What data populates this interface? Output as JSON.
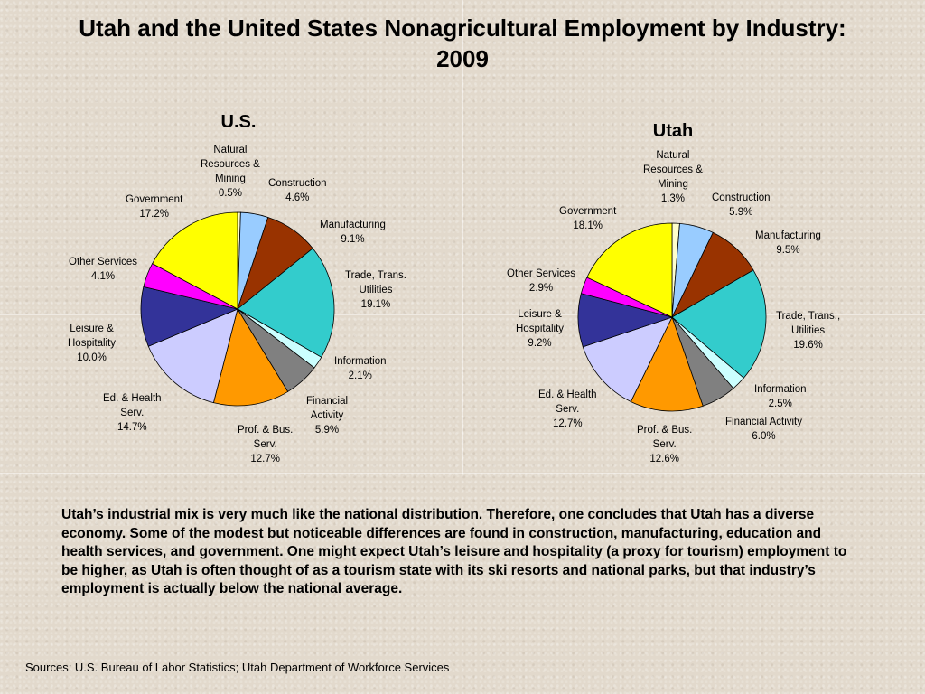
{
  "title": "Utah and the United States Nonagricultural Employment by Industry: 2009",
  "chart_data": [
    {
      "type": "pie",
      "title": "U.S.",
      "slices": [
        {
          "label": "Natural Resources & Mining",
          "value": 0.5,
          "display": "0.5%",
          "color": "#ffffcc"
        },
        {
          "label": "Construction",
          "value": 4.6,
          "display": "4.6%",
          "color": "#99ccff"
        },
        {
          "label": "Manufacturing",
          "value": 9.1,
          "display": "9.1%",
          "color": "#993300"
        },
        {
          "label": "Trade, Trans. Utilities",
          "value": 19.1,
          "display": "19.1%",
          "color": "#33cccc"
        },
        {
          "label": "Information",
          "value": 2.1,
          "display": "2.1%",
          "color": "#ccffff"
        },
        {
          "label": "Financial Activity",
          "value": 5.9,
          "display": "5.9%",
          "color": "#808080"
        },
        {
          "label": "Prof. & Bus. Serv.",
          "value": 12.7,
          "display": "12.7%",
          "color": "#ff9900"
        },
        {
          "label": "Ed. & Health Serv.",
          "value": 14.7,
          "display": "14.7%",
          "color": "#ccccff"
        },
        {
          "label": "Leisure & Hospitality",
          "value": 10.0,
          "display": "10.0%",
          "color": "#333399"
        },
        {
          "label": "Other Services",
          "value": 4.1,
          "display": "4.1%",
          "color": "#ff00ff"
        },
        {
          "label": "Government",
          "value": 17.2,
          "display": "17.2%",
          "color": "#ffff00"
        }
      ]
    },
    {
      "type": "pie",
      "title": "Utah",
      "slices": [
        {
          "label": "Natural Resources & Mining",
          "value": 1.3,
          "display": "1.3%",
          "color": "#ffffcc"
        },
        {
          "label": "Construction",
          "value": 5.9,
          "display": "5.9%",
          "color": "#99ccff"
        },
        {
          "label": "Manufacturing",
          "value": 9.5,
          "display": "9.5%",
          "color": "#993300"
        },
        {
          "label": "Trade, Trans., Utilities",
          "value": 19.6,
          "display": "19.6%",
          "color": "#33cccc"
        },
        {
          "label": "Information",
          "value": 2.5,
          "display": "2.5%",
          "color": "#ccffff"
        },
        {
          "label": "Financial Activity",
          "value": 6.0,
          "display": "6.0%",
          "color": "#808080"
        },
        {
          "label": "Prof. & Bus. Serv.",
          "value": 12.6,
          "display": "12.6%",
          "color": "#ff9900"
        },
        {
          "label": "Ed. & Health Serv.",
          "value": 12.7,
          "display": "12.7%",
          "color": "#ccccff"
        },
        {
          "label": "Leisure & Hospitality",
          "value": 9.2,
          "display": "9.2%",
          "color": "#333399"
        },
        {
          "label": "Other Services",
          "value": 2.9,
          "display": "2.9%",
          "color": "#ff00ff"
        },
        {
          "label": "Government",
          "value": 18.1,
          "display": "18.1%",
          "color": "#ffff00"
        }
      ]
    }
  ],
  "description": "Utah’s industrial mix is very much like the national distribution. Therefore, one concludes that Utah has a diverse economy. Some of the modest but noticeable differences are found in construction, manufacturing, education and health services, and government. One might expect Utah’s leisure and hospitality (a proxy for tourism) employment to be higher, as Utah is often thought of as a tourism state with its ski resorts and national parks, but that industry’s employment is actually below the national average.",
  "sources": "Sources: U.S. Bureau of Labor Statistics; Utah Department of Workforce Services"
}
